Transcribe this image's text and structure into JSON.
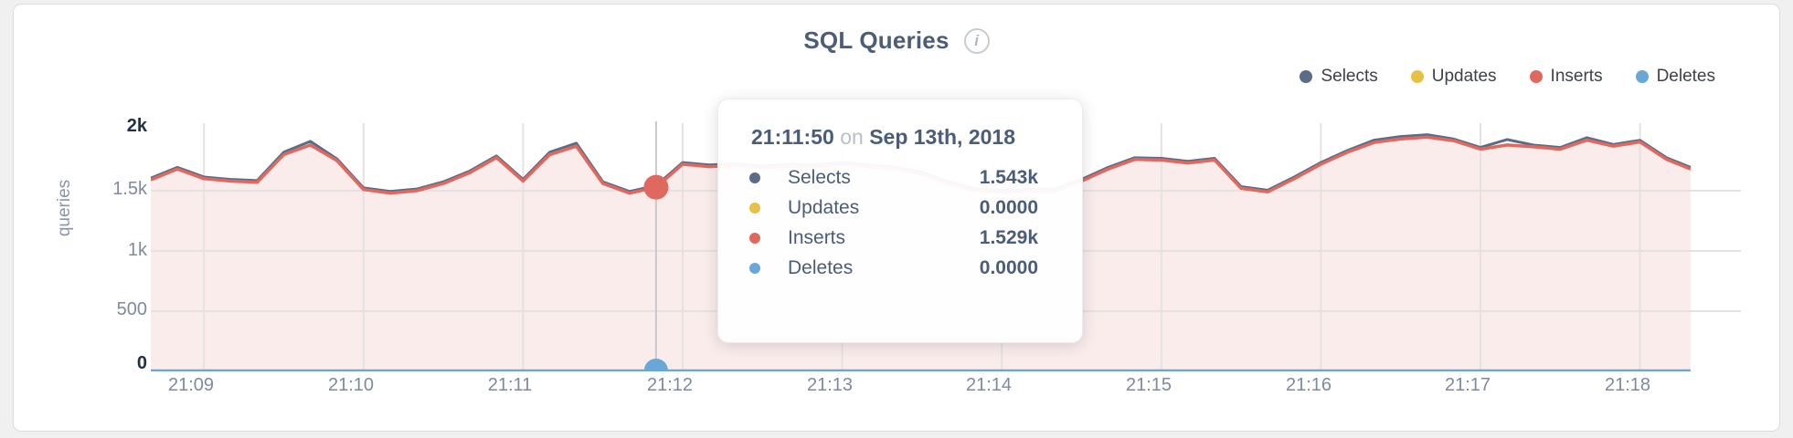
{
  "header": {
    "title": "SQL Queries",
    "info_glyph": "i"
  },
  "colors": {
    "selects": "#5b6c87",
    "updates": "#e9bf45",
    "inserts": "#e0695f",
    "deletes": "#68a7d8",
    "fill": "rgba(216,106,98,0.13)",
    "grid": "#e6e1e3",
    "crosshair": "#c9c9c9"
  },
  "legend": {
    "items": [
      {
        "label": "Selects",
        "color": "#5b6c87"
      },
      {
        "label": "Updates",
        "color": "#e9bf45"
      },
      {
        "label": "Inserts",
        "color": "#e0695f"
      },
      {
        "label": "Deletes",
        "color": "#68a7d8"
      }
    ]
  },
  "axes": {
    "y_title": "queries",
    "y_ticks": [
      "2k",
      "1.5k",
      "1k",
      "500",
      "0"
    ],
    "x_ticks": [
      "21:09",
      "21:10",
      "21:11",
      "21:12",
      "21:13",
      "21:14",
      "21:15",
      "21:16",
      "21:17",
      "21:18"
    ]
  },
  "tooltip": {
    "time": "21:11:50",
    "conj": "on",
    "date": "Sep 13th, 2018",
    "rows": [
      {
        "label": "Selects",
        "value": "1.543k",
        "color": "#5b6c87"
      },
      {
        "label": "Updates",
        "value": "0.0000",
        "color": "#e9bf45"
      },
      {
        "label": "Inserts",
        "value": "1.529k",
        "color": "#e0695f"
      },
      {
        "label": "Deletes",
        "value": "0.0000",
        "color": "#68a7d8"
      }
    ]
  },
  "chart_data": {
    "type": "area",
    "title": "SQL Queries",
    "ylabel": "queries",
    "ylim": [
      0,
      2000
    ],
    "y_tick_values": [
      0,
      500,
      1000,
      1500,
      2000
    ],
    "x_tick_labels": [
      "21:09",
      "21:10",
      "21:11",
      "21:12",
      "21:13",
      "21:14",
      "21:15",
      "21:16",
      "21:17",
      "21:18"
    ],
    "x_start_time": "21:08:40",
    "x_axis_tick_offsets_seconds": [
      20,
      80,
      140,
      200,
      260,
      320,
      380,
      440,
      500,
      560
    ],
    "x_seconds": [
      0,
      10,
      20,
      30,
      40,
      50,
      60,
      70,
      80,
      90,
      100,
      110,
      120,
      130,
      140,
      150,
      160,
      170,
      180,
      190,
      200,
      210,
      220,
      230,
      240,
      250,
      260,
      270,
      280,
      290,
      300,
      310,
      320,
      330,
      340,
      350,
      360,
      370,
      380,
      390,
      400,
      410,
      420,
      430,
      440,
      450,
      460,
      470,
      480,
      490,
      500,
      510,
      520,
      530,
      540,
      550,
      560,
      570,
      579
    ],
    "series": [
      {
        "name": "Selects",
        "color": "#5b6c87",
        "values": [
          1604,
          1694,
          1614,
          1594,
          1584,
          1820,
          1910,
          1764,
          1524,
          1494,
          1514,
          1574,
          1664,
          1789,
          1594,
          1820,
          1895,
          1574,
          1494,
          1543,
          1734,
          1714,
          1724,
          1704,
          1719,
          1714,
          1734,
          1714,
          1694,
          1654,
          1574,
          1514,
          1504,
          1509,
          1514,
          1594,
          1694,
          1774,
          1769,
          1744,
          1769,
          1534,
          1504,
          1614,
          1734,
          1834,
          1920,
          1950,
          1965,
          1929,
          1859,
          1925,
          1879,
          1859,
          1940,
          1884,
          1919,
          1774,
          1694
        ]
      },
      {
        "name": "Updates",
        "color": "#e9bf45",
        "constant": 0
      },
      {
        "name": "Inserts",
        "color": "#e0695f",
        "fill": true,
        "values": [
          1590,
          1680,
          1600,
          1580,
          1570,
          1800,
          1880,
          1750,
          1510,
          1480,
          1500,
          1560,
          1650,
          1775,
          1580,
          1800,
          1870,
          1560,
          1480,
          1529,
          1720,
          1700,
          1710,
          1690,
          1705,
          1700,
          1720,
          1700,
          1680,
          1640,
          1560,
          1500,
          1490,
          1495,
          1500,
          1580,
          1680,
          1760,
          1755,
          1730,
          1755,
          1520,
          1490,
          1600,
          1720,
          1820,
          1900,
          1930,
          1945,
          1915,
          1845,
          1880,
          1865,
          1845,
          1920,
          1870,
          1905,
          1760,
          1680
        ]
      },
      {
        "name": "Deletes",
        "color": "#68a7d8",
        "constant": 0
      }
    ],
    "selected_point": {
      "time": "21:11:50",
      "date": "Sep 13th, 2018",
      "x_seconds": 190,
      "values": {
        "Selects": 1543,
        "Updates": 0,
        "Inserts": 1529,
        "Deletes": 0
      }
    },
    "legend_position": "top-right",
    "grid": true
  }
}
